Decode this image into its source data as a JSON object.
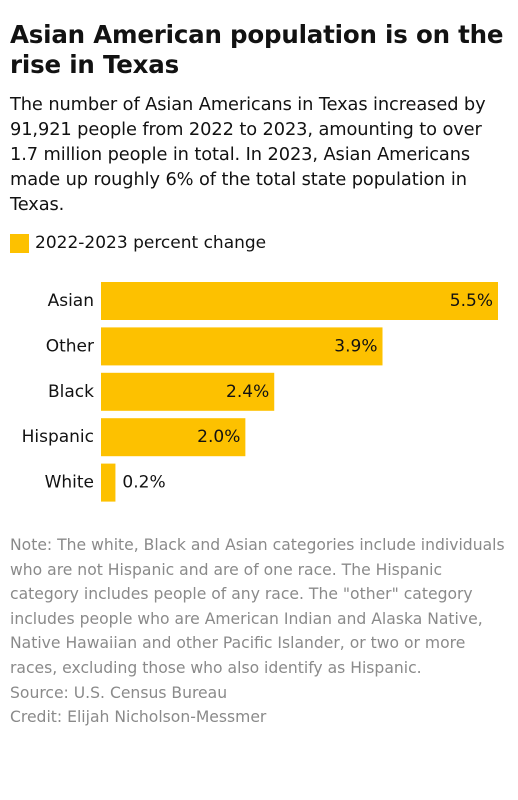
{
  "title": "Asian American population is on the rise in Texas",
  "subtitle": "The number of Asian Americans in Texas increased by 91,921 people from 2022 to 2023, amounting to over 1.7 million people in total. In 2023, Asian Americans made up roughly 6% of the total state population in Texas.",
  "legend": {
    "label": "2022-2023 percent change",
    "color": "#fdc100"
  },
  "chart_data": {
    "type": "bar",
    "orientation": "horizontal",
    "categories": [
      "Asian",
      "Other",
      "Black",
      "Hispanic",
      "White"
    ],
    "series": [
      {
        "name": "2022-2023 percent change",
        "values": [
          5.5,
          3.9,
          2.4,
          2.0,
          0.2
        ],
        "labels": [
          "5.5%",
          "3.9%",
          "2.4%",
          "2.0%",
          "0.2%"
        ],
        "color": "#fdc100"
      }
    ],
    "xlim": [
      0,
      5.5
    ],
    "grid": false,
    "legend_position": "top-left"
  },
  "note": "Note: The white, Black and Asian categories include individuals who are not Hispanic and are of one race. The Hispanic category includes people of any race. The \"other\" category includes people who are American Indian and Alaska Native, Native Hawaiian and other Pacific Islander, or two or more races, excluding those who also identify as Hispanic.",
  "source": "Source: U.S. Census Bureau",
  "credit": "Credit: Elijah Nicholson-Messmer"
}
